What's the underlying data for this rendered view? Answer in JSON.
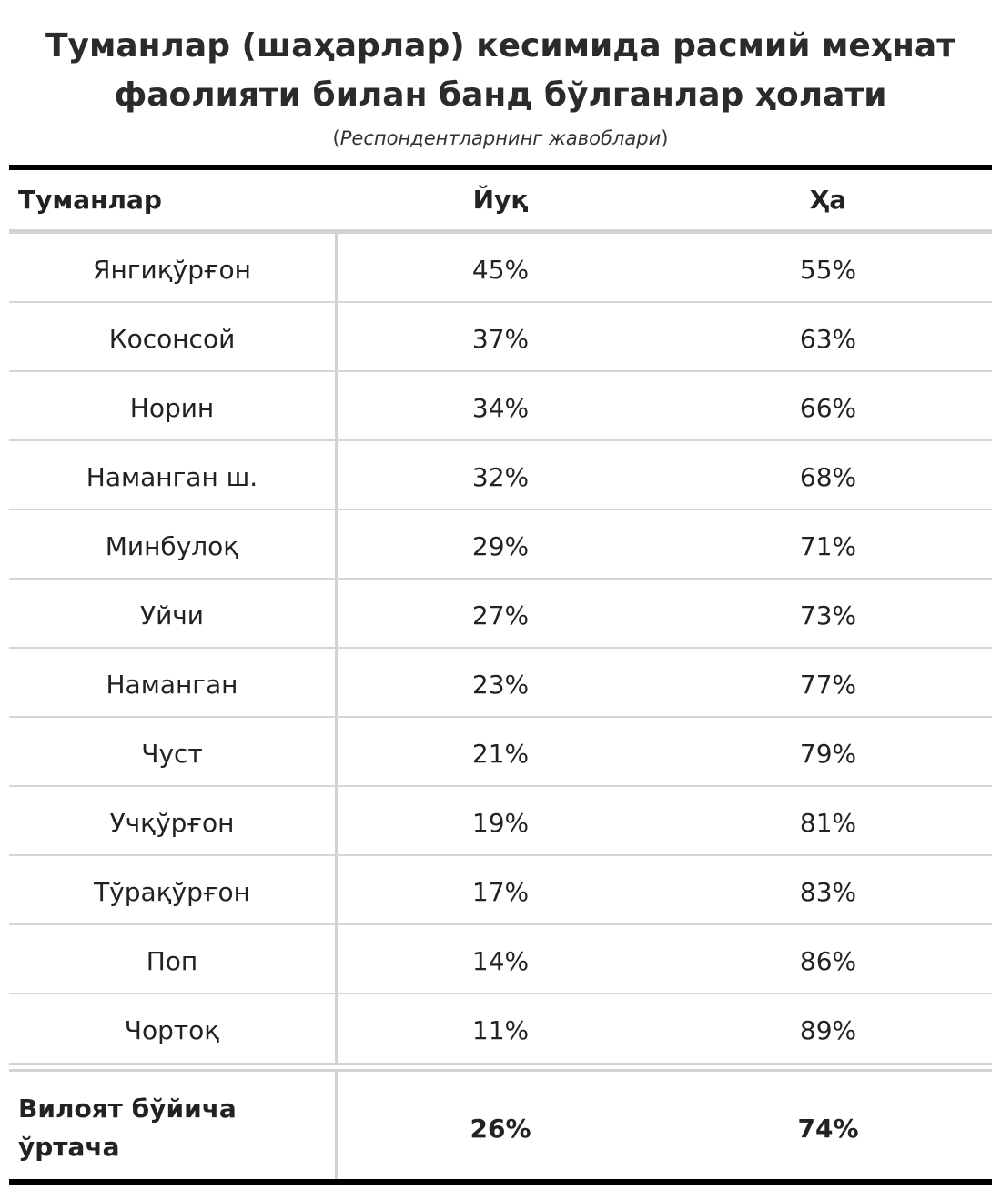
{
  "chart_data": {
    "type": "table",
    "title_line1": "Туманлар (шаҳарлар) кесимида расмий меҳнат",
    "title_line2": "фаолияти билан банд бўлганлар ҳолати",
    "subtitle": "Респондентларнинг жавоблари",
    "columns": [
      "Туманлар",
      "Йуқ",
      "Ҳа"
    ],
    "rows": [
      {
        "district": "Янгиқўрғон",
        "no": "45%",
        "yes": "55%"
      },
      {
        "district": "Косонсой",
        "no": "37%",
        "yes": "63%"
      },
      {
        "district": "Норин",
        "no": "34%",
        "yes": "66%"
      },
      {
        "district": "Наманган ш.",
        "no": "32%",
        "yes": "68%"
      },
      {
        "district": "Минбулоқ",
        "no": "29%",
        "yes": "71%"
      },
      {
        "district": "Уйчи",
        "no": "27%",
        "yes": "73%"
      },
      {
        "district": "Наманган",
        "no": "23%",
        "yes": "77%"
      },
      {
        "district": "Чуст",
        "no": "21%",
        "yes": "79%"
      },
      {
        "district": "Учқўрғон",
        "no": "19%",
        "yes": "81%"
      },
      {
        "district": "Тўрақўрғон",
        "no": "17%",
        "yes": "83%"
      },
      {
        "district": "Поп",
        "no": "14%",
        "yes": "86%"
      },
      {
        "district": "Чортоқ",
        "no": "11%",
        "yes": "89%"
      }
    ],
    "total": {
      "label_line1": "Вилоят бўйича",
      "label_line2": "ўртача",
      "no": "26%",
      "yes": "74%"
    }
  }
}
